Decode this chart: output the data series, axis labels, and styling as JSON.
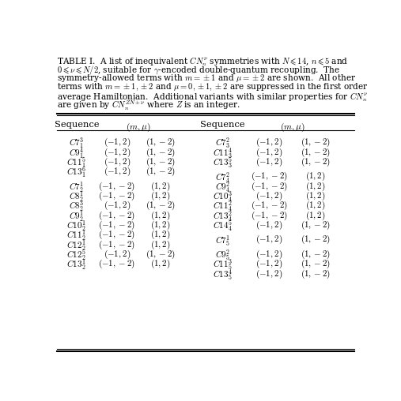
{
  "title_line1": "TABLE I.  A list of inequivalent $CN_n^{\\nu}$ symmetries with $N\\leqslant 14$, $n\\leqslant 5$ and",
  "title_line2": "$0\\leqslant\\nu\\leqslant N/2$, suitable for $\\gamma$-encoded double-quantum recoupling.  The",
  "title_line3": "symmetry-allowed terms with $m=\\pm 1$ and $\\mu=\\pm 2$ are shown.  All other",
  "title_line4": "terms with $m=\\pm 1,\\pm 2$ and $\\mu=0,\\pm 1,\\pm 2$ are suppressed in the first order",
  "title_line5": "average Hamiltonian.  Additional variants with similar properties for $CN_n^{\\nu}$",
  "title_line6": "are given by $CN_n^{ZN\\pm\\nu}$ where $Z$ is an integer.",
  "left_col": [
    [
      "$C7_1^3$",
      "$(-1,2)$",
      "$(1,-2)$"
    ],
    [
      "$C9_1^4$",
      "$(-1,2)$",
      "$(1,-2)$"
    ],
    [
      "$C11_1^5$",
      "$(-1,2)$",
      "$(1,-2)$"
    ],
    [
      "$C13_1^6$",
      "$(-1,2)$",
      "$(1,-2)$"
    ],
    null,
    [
      "$C7_2^1$",
      "$(-1,-2)$",
      "$(1,2)$"
    ],
    [
      "$C8_2^1$",
      "$(-1,-2)$",
      "$(1,2)$"
    ],
    [
      "$C8_2^3$",
      "$(-1,2)$",
      "$(1,-2)$"
    ],
    [
      "$C9_2^1$",
      "$(-1,-2)$",
      "$(1,2)$"
    ],
    [
      "$C10_2^1$",
      "$(-1,-2)$",
      "$(1,2)$"
    ],
    [
      "$C11_2^1$",
      "$(-1,-2)$",
      "$(1,2)$"
    ],
    [
      "$C12_2^1$",
      "$(-1,-2)$",
      "$(1,2)$"
    ],
    [
      "$C12_2^5$",
      "$(-1,2)$",
      "$(1,-2)$"
    ],
    [
      "$C13_2^1$",
      "$(-1,-2)$",
      "$(1,2)$"
    ]
  ],
  "right_col": [
    [
      "$C7_3^2$",
      "$(-1,2)$",
      "$(1,-2)$"
    ],
    [
      "$C11_3^4$",
      "$(-1,2)$",
      "$(1,-2)$"
    ],
    [
      "$C13_3^5$",
      "$(-1,2)$",
      "$(1,-2)$"
    ],
    null,
    [
      "$C7_4^2$",
      "$(-1,-2)$",
      "$(1,2)$"
    ],
    [
      "$C9_4^2$",
      "$(-1,-2)$",
      "$(1,2)$"
    ],
    [
      "$C10_4^3$",
      "$(-1,2)$",
      "$(1,2)$"
    ],
    [
      "$C11_4^2$",
      "$(-1,-2)$",
      "$(1,2)$"
    ],
    [
      "$C13_4^2$",
      "$(-1,-2)$",
      "$(1,2)$"
    ],
    [
      "$C14_4^5$",
      "$(-1,2)$",
      "$(1,-2)$"
    ],
    null,
    [
      "$C7_5^1$",
      "$(-1,2)$",
      "$(1,-2)$"
    ],
    null,
    [
      "$C9_5^2$",
      "$(-1,2)$",
      "$(1,-2)$"
    ],
    [
      "$C11_5^3$",
      "$(-1,2)$",
      "$(1,-2)$"
    ],
    [
      "$C13_5^4$",
      "$(-1,2)$",
      "$(1,-2)$"
    ]
  ]
}
